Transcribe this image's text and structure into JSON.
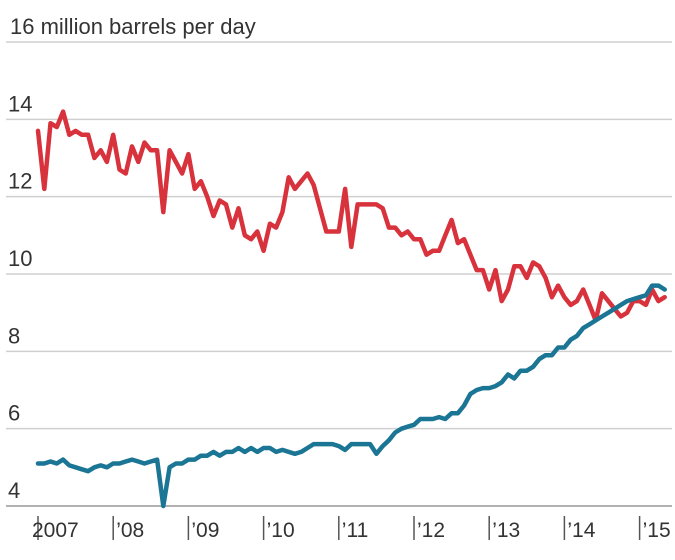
{
  "chart_data": {
    "type": "line",
    "title": "16 million barrels per day",
    "ylabel": "",
    "xlabel": "",
    "ylim": [
      4,
      16
    ],
    "y_ticks": [
      {
        "value": 16,
        "label": ""
      },
      {
        "value": 14,
        "label": "14"
      },
      {
        "value": 12,
        "label": "12"
      },
      {
        "value": 10,
        "label": "10"
      },
      {
        "value": 8,
        "label": "8"
      },
      {
        "value": 6,
        "label": "6"
      },
      {
        "value": 4,
        "label": "4"
      }
    ],
    "x_ticks": [
      {
        "date": "2007-01",
        "label": "2007"
      },
      {
        "date": "2008-01",
        "label": "’08"
      },
      {
        "date": "2009-01",
        "label": "’09"
      },
      {
        "date": "2010-01",
        "label": "’10"
      },
      {
        "date": "2011-01",
        "label": "’11"
      },
      {
        "date": "2012-01",
        "label": "’12"
      },
      {
        "date": "2013-01",
        "label": "’13"
      },
      {
        "date": "2014-01",
        "label": "’14"
      },
      {
        "date": "2015-01",
        "label": "’15"
      }
    ],
    "grid": true,
    "legend": "none",
    "series": [
      {
        "color": "#d8323c",
        "points": [
          [
            "2007-01",
            13.7
          ],
          [
            "2007-02",
            12.2
          ],
          [
            "2007-03",
            13.9
          ],
          [
            "2007-04",
            13.8
          ],
          [
            "2007-05",
            14.2
          ],
          [
            "2007-06",
            13.6
          ],
          [
            "2007-07",
            13.7
          ],
          [
            "2007-08",
            13.6
          ],
          [
            "2007-09",
            13.6
          ],
          [
            "2007-10",
            13.0
          ],
          [
            "2007-11",
            13.2
          ],
          [
            "2007-12",
            12.9
          ],
          [
            "2008-01",
            13.6
          ],
          [
            "2008-02",
            12.7
          ],
          [
            "2008-03",
            12.6
          ],
          [
            "2008-04",
            13.3
          ],
          [
            "2008-05",
            12.9
          ],
          [
            "2008-06",
            13.4
          ],
          [
            "2008-07",
            13.2
          ],
          [
            "2008-08",
            13.2
          ],
          [
            "2008-09",
            11.6
          ],
          [
            "2008-10",
            13.2
          ],
          [
            "2008-11",
            12.9
          ],
          [
            "2008-12",
            12.6
          ],
          [
            "2009-01",
            13.1
          ],
          [
            "2009-02",
            12.2
          ],
          [
            "2009-03",
            12.4
          ],
          [
            "2009-04",
            12.0
          ],
          [
            "2009-05",
            11.5
          ],
          [
            "2009-06",
            11.9
          ],
          [
            "2009-07",
            11.8
          ],
          [
            "2009-08",
            11.2
          ],
          [
            "2009-09",
            11.7
          ],
          [
            "2009-10",
            11.0
          ],
          [
            "2009-11",
            10.9
          ],
          [
            "2009-12",
            11.1
          ],
          [
            "2010-01",
            10.6
          ],
          [
            "2010-02",
            11.3
          ],
          [
            "2010-03",
            11.2
          ],
          [
            "2010-04",
            11.6
          ],
          [
            "2010-05",
            12.5
          ],
          [
            "2010-06",
            12.2
          ],
          [
            "2010-07",
            12.4
          ],
          [
            "2010-08",
            12.6
          ],
          [
            "2010-09",
            12.3
          ],
          [
            "2010-10",
            11.7
          ],
          [
            "2010-11",
            11.1
          ],
          [
            "2010-12",
            11.1
          ],
          [
            "2011-01",
            11.1
          ],
          [
            "2011-02",
            12.2
          ],
          [
            "2011-03",
            10.7
          ],
          [
            "2011-04",
            11.8
          ],
          [
            "2011-05",
            11.8
          ],
          [
            "2011-06",
            11.8
          ],
          [
            "2011-07",
            11.8
          ],
          [
            "2011-08",
            11.7
          ],
          [
            "2011-09",
            11.2
          ],
          [
            "2011-10",
            11.2
          ],
          [
            "2011-11",
            11.0
          ],
          [
            "2011-12",
            11.1
          ],
          [
            "2012-01",
            10.9
          ],
          [
            "2012-02",
            10.9
          ],
          [
            "2012-03",
            10.5
          ],
          [
            "2012-04",
            10.6
          ],
          [
            "2012-05",
            10.6
          ],
          [
            "2012-06",
            11.0
          ],
          [
            "2012-07",
            11.4
          ],
          [
            "2012-08",
            10.8
          ],
          [
            "2012-09",
            10.9
          ],
          [
            "2012-10",
            10.5
          ],
          [
            "2012-11",
            10.1
          ],
          [
            "2012-12",
            10.1
          ],
          [
            "2013-01",
            9.6
          ],
          [
            "2013-02",
            10.1
          ],
          [
            "2013-03",
            9.3
          ],
          [
            "2013-04",
            9.6
          ],
          [
            "2013-05",
            10.2
          ],
          [
            "2013-06",
            10.2
          ],
          [
            "2013-07",
            9.9
          ],
          [
            "2013-08",
            10.3
          ],
          [
            "2013-09",
            10.2
          ],
          [
            "2013-10",
            9.9
          ],
          [
            "2013-11",
            9.4
          ],
          [
            "2013-12",
            9.7
          ],
          [
            "2014-01",
            9.4
          ],
          [
            "2014-02",
            9.2
          ],
          [
            "2014-03",
            9.3
          ],
          [
            "2014-04",
            9.6
          ],
          [
            "2014-05",
            9.2
          ],
          [
            "2014-06",
            8.8
          ],
          [
            "2014-07",
            9.5
          ],
          [
            "2014-08",
            9.3
          ],
          [
            "2014-09",
            9.1
          ],
          [
            "2014-10",
            8.9
          ],
          [
            "2014-11",
            9.0
          ],
          [
            "2014-12",
            9.3
          ],
          [
            "2015-01",
            9.3
          ],
          [
            "2015-02",
            9.2
          ],
          [
            "2015-03",
            9.6
          ],
          [
            "2015-04",
            9.3
          ],
          [
            "2015-05",
            9.4
          ]
        ]
      },
      {
        "color": "#1b7594",
        "points": [
          [
            "2007-01",
            5.1
          ],
          [
            "2007-02",
            5.1
          ],
          [
            "2007-03",
            5.15
          ],
          [
            "2007-04",
            5.1
          ],
          [
            "2007-05",
            5.2
          ],
          [
            "2007-06",
            5.05
          ],
          [
            "2007-07",
            5.0
          ],
          [
            "2007-08",
            4.95
          ],
          [
            "2007-09",
            4.9
          ],
          [
            "2007-10",
            5.0
          ],
          [
            "2007-11",
            5.05
          ],
          [
            "2007-12",
            5.0
          ],
          [
            "2008-01",
            5.1
          ],
          [
            "2008-02",
            5.1
          ],
          [
            "2008-03",
            5.15
          ],
          [
            "2008-04",
            5.2
          ],
          [
            "2008-05",
            5.15
          ],
          [
            "2008-06",
            5.1
          ],
          [
            "2008-07",
            5.15
          ],
          [
            "2008-08",
            5.2
          ],
          [
            "2008-09",
            4.0
          ],
          [
            "2008-10",
            5.0
          ],
          [
            "2008-11",
            5.1
          ],
          [
            "2008-12",
            5.1
          ],
          [
            "2009-01",
            5.2
          ],
          [
            "2009-02",
            5.2
          ],
          [
            "2009-03",
            5.3
          ],
          [
            "2009-04",
            5.3
          ],
          [
            "2009-05",
            5.4
          ],
          [
            "2009-06",
            5.3
          ],
          [
            "2009-07",
            5.4
          ],
          [
            "2009-08",
            5.4
          ],
          [
            "2009-09",
            5.5
          ],
          [
            "2009-10",
            5.4
          ],
          [
            "2009-11",
            5.5
          ],
          [
            "2009-12",
            5.4
          ],
          [
            "2010-01",
            5.5
          ],
          [
            "2010-02",
            5.5
          ],
          [
            "2010-03",
            5.4
          ],
          [
            "2010-04",
            5.45
          ],
          [
            "2010-05",
            5.4
          ],
          [
            "2010-06",
            5.35
          ],
          [
            "2010-07",
            5.4
          ],
          [
            "2010-08",
            5.5
          ],
          [
            "2010-09",
            5.6
          ],
          [
            "2010-10",
            5.6
          ],
          [
            "2010-11",
            5.6
          ],
          [
            "2010-12",
            5.6
          ],
          [
            "2011-01",
            5.55
          ],
          [
            "2011-02",
            5.45
          ],
          [
            "2011-03",
            5.6
          ],
          [
            "2011-04",
            5.6
          ],
          [
            "2011-05",
            5.6
          ],
          [
            "2011-06",
            5.6
          ],
          [
            "2011-07",
            5.35
          ],
          [
            "2011-08",
            5.55
          ],
          [
            "2011-09",
            5.7
          ],
          [
            "2011-10",
            5.9
          ],
          [
            "2011-11",
            6.0
          ],
          [
            "2011-12",
            6.05
          ],
          [
            "2012-01",
            6.1
          ],
          [
            "2012-02",
            6.25
          ],
          [
            "2012-03",
            6.25
          ],
          [
            "2012-04",
            6.25
          ],
          [
            "2012-05",
            6.3
          ],
          [
            "2012-06",
            6.25
          ],
          [
            "2012-07",
            6.4
          ],
          [
            "2012-08",
            6.4
          ],
          [
            "2012-09",
            6.6
          ],
          [
            "2012-10",
            6.9
          ],
          [
            "2012-11",
            7.0
          ],
          [
            "2012-12",
            7.05
          ],
          [
            "2013-01",
            7.05
          ],
          [
            "2013-02",
            7.1
          ],
          [
            "2013-03",
            7.2
          ],
          [
            "2013-04",
            7.4
          ],
          [
            "2013-05",
            7.3
          ],
          [
            "2013-06",
            7.5
          ],
          [
            "2013-07",
            7.5
          ],
          [
            "2013-08",
            7.6
          ],
          [
            "2013-09",
            7.8
          ],
          [
            "2013-10",
            7.9
          ],
          [
            "2013-11",
            7.9
          ],
          [
            "2013-12",
            8.1
          ],
          [
            "2014-01",
            8.1
          ],
          [
            "2014-02",
            8.3
          ],
          [
            "2014-03",
            8.4
          ],
          [
            "2014-04",
            8.6
          ],
          [
            "2014-05",
            8.7
          ],
          [
            "2014-06",
            8.8
          ],
          [
            "2014-07",
            8.9
          ],
          [
            "2014-08",
            9.0
          ],
          [
            "2014-09",
            9.1
          ],
          [
            "2014-10",
            9.2
          ],
          [
            "2014-11",
            9.3
          ],
          [
            "2014-12",
            9.35
          ],
          [
            "2015-01",
            9.4
          ],
          [
            "2015-02",
            9.45
          ],
          [
            "2015-03",
            9.7
          ],
          [
            "2015-04",
            9.7
          ],
          [
            "2015-05",
            9.6
          ]
        ]
      }
    ]
  }
}
